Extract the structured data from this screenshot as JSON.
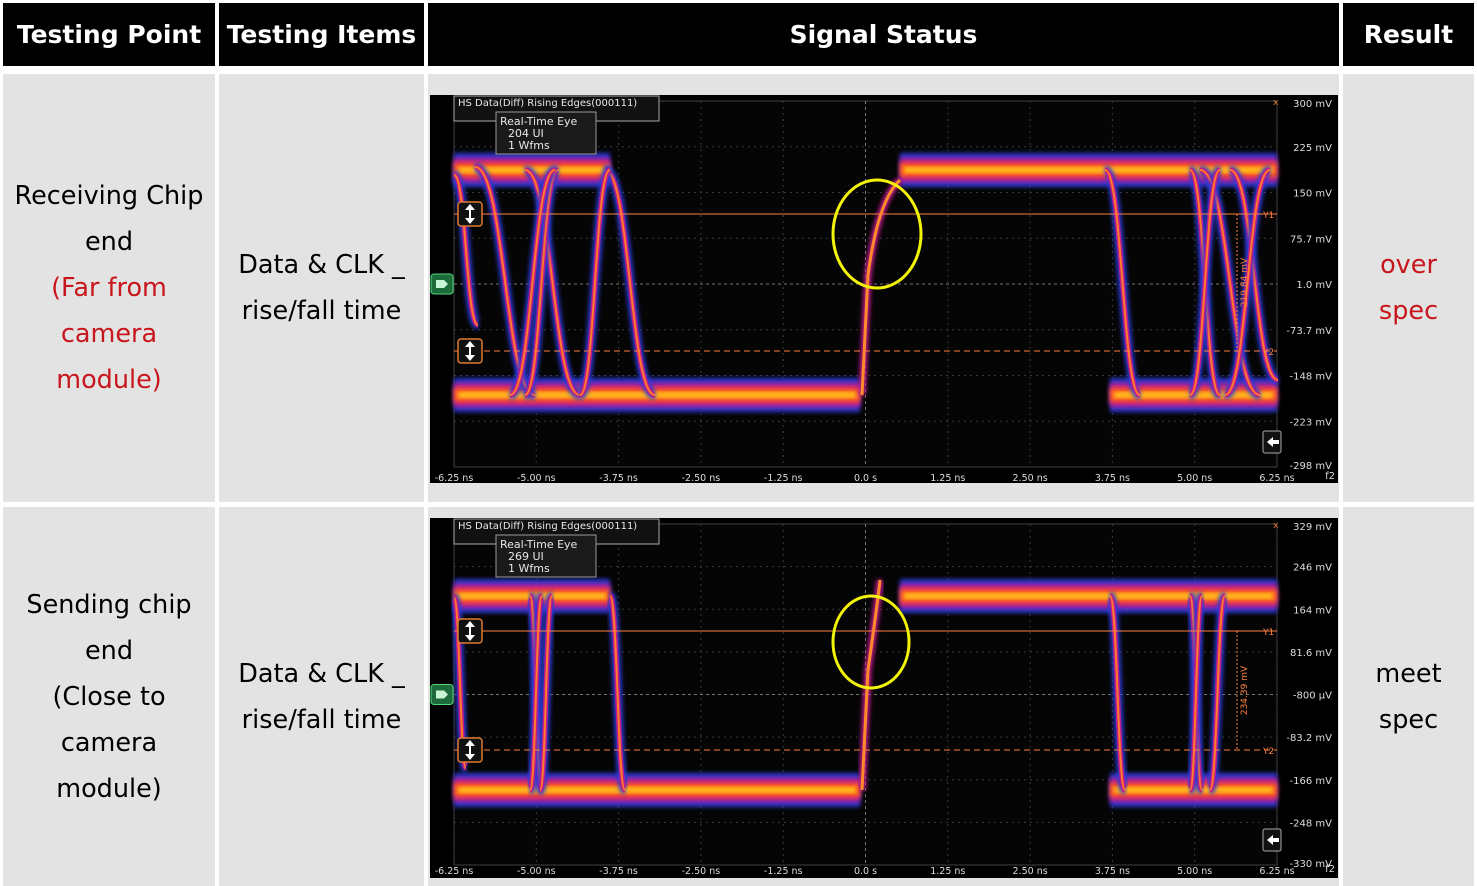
{
  "header": {
    "col1": "Testing Point",
    "col2": "Testing Items",
    "col3": "Signal Status",
    "col4": "Result"
  },
  "rows": [
    {
      "point_lines": [
        "Receiving Chip",
        "end"
      ],
      "point_note_lines": [
        "(Far from",
        "camera",
        "module)"
      ],
      "items_lines": [
        "Data & CLK _",
        "rise/fall time"
      ],
      "result_lines": [
        "over",
        "spec"
      ],
      "result_color": "#c8161d",
      "scope": {
        "title": "HS Data(Diff) Rising Edges(000111)",
        "eye_title": "Real-Time Eye",
        "ui": "204 UI",
        "wfms": "1 Wfms",
        "delta": "219.84 mV",
        "y_ticks": [
          "300 mV",
          "225 mV",
          "150 mV",
          "75.7 mV",
          "1.0 mV",
          "-73.7 mV",
          "-148 mV",
          "-223 mV",
          "-298 mV"
        ],
        "x_ticks": [
          "-6.25 ns",
          "-5.00 ns",
          "-3.75 ns",
          "-2.50 ns",
          "-1.25 ns",
          "0.0 s",
          "1.25 ns",
          "2.50 ns",
          "3.75 ns",
          "5.00 ns",
          "6.25 ns"
        ],
        "cursor_labels": [
          "Y1",
          "Y2"
        ],
        "corner_label": "f2"
      }
    },
    {
      "point_lines": [
        "Sending chip",
        "end",
        "(Close to",
        "camera",
        "module)"
      ],
      "point_note_lines": [],
      "items_lines": [
        "Data & CLK _",
        "rise/fall time"
      ],
      "result_lines": [
        "meet",
        "spec"
      ],
      "result_color": "#000000",
      "scope": {
        "title": "HS Data(Diff) Rising Edges(000111)",
        "eye_title": "Real-Time Eye",
        "ui": "269 UI",
        "wfms": "1 Wfms",
        "delta": "234.39 mV",
        "y_ticks": [
          "329 mV",
          "246 mV",
          "164 mV",
          "81.6 mV",
          "-800 µV",
          "-83.2 mV",
          "-166 mV",
          "-248 mV",
          "-330 mV"
        ],
        "x_ticks": [
          "-6.25 ns",
          "-5.00 ns",
          "-3.75 ns",
          "-2.50 ns",
          "-1.25 ns",
          "0.0 s",
          "1.25 ns",
          "2.50 ns",
          "3.75 ns",
          "5.00 ns",
          "6.25 ns"
        ],
        "cursor_labels": [
          "Y1",
          "Y2"
        ],
        "corner_label": "f2"
      }
    }
  ]
}
